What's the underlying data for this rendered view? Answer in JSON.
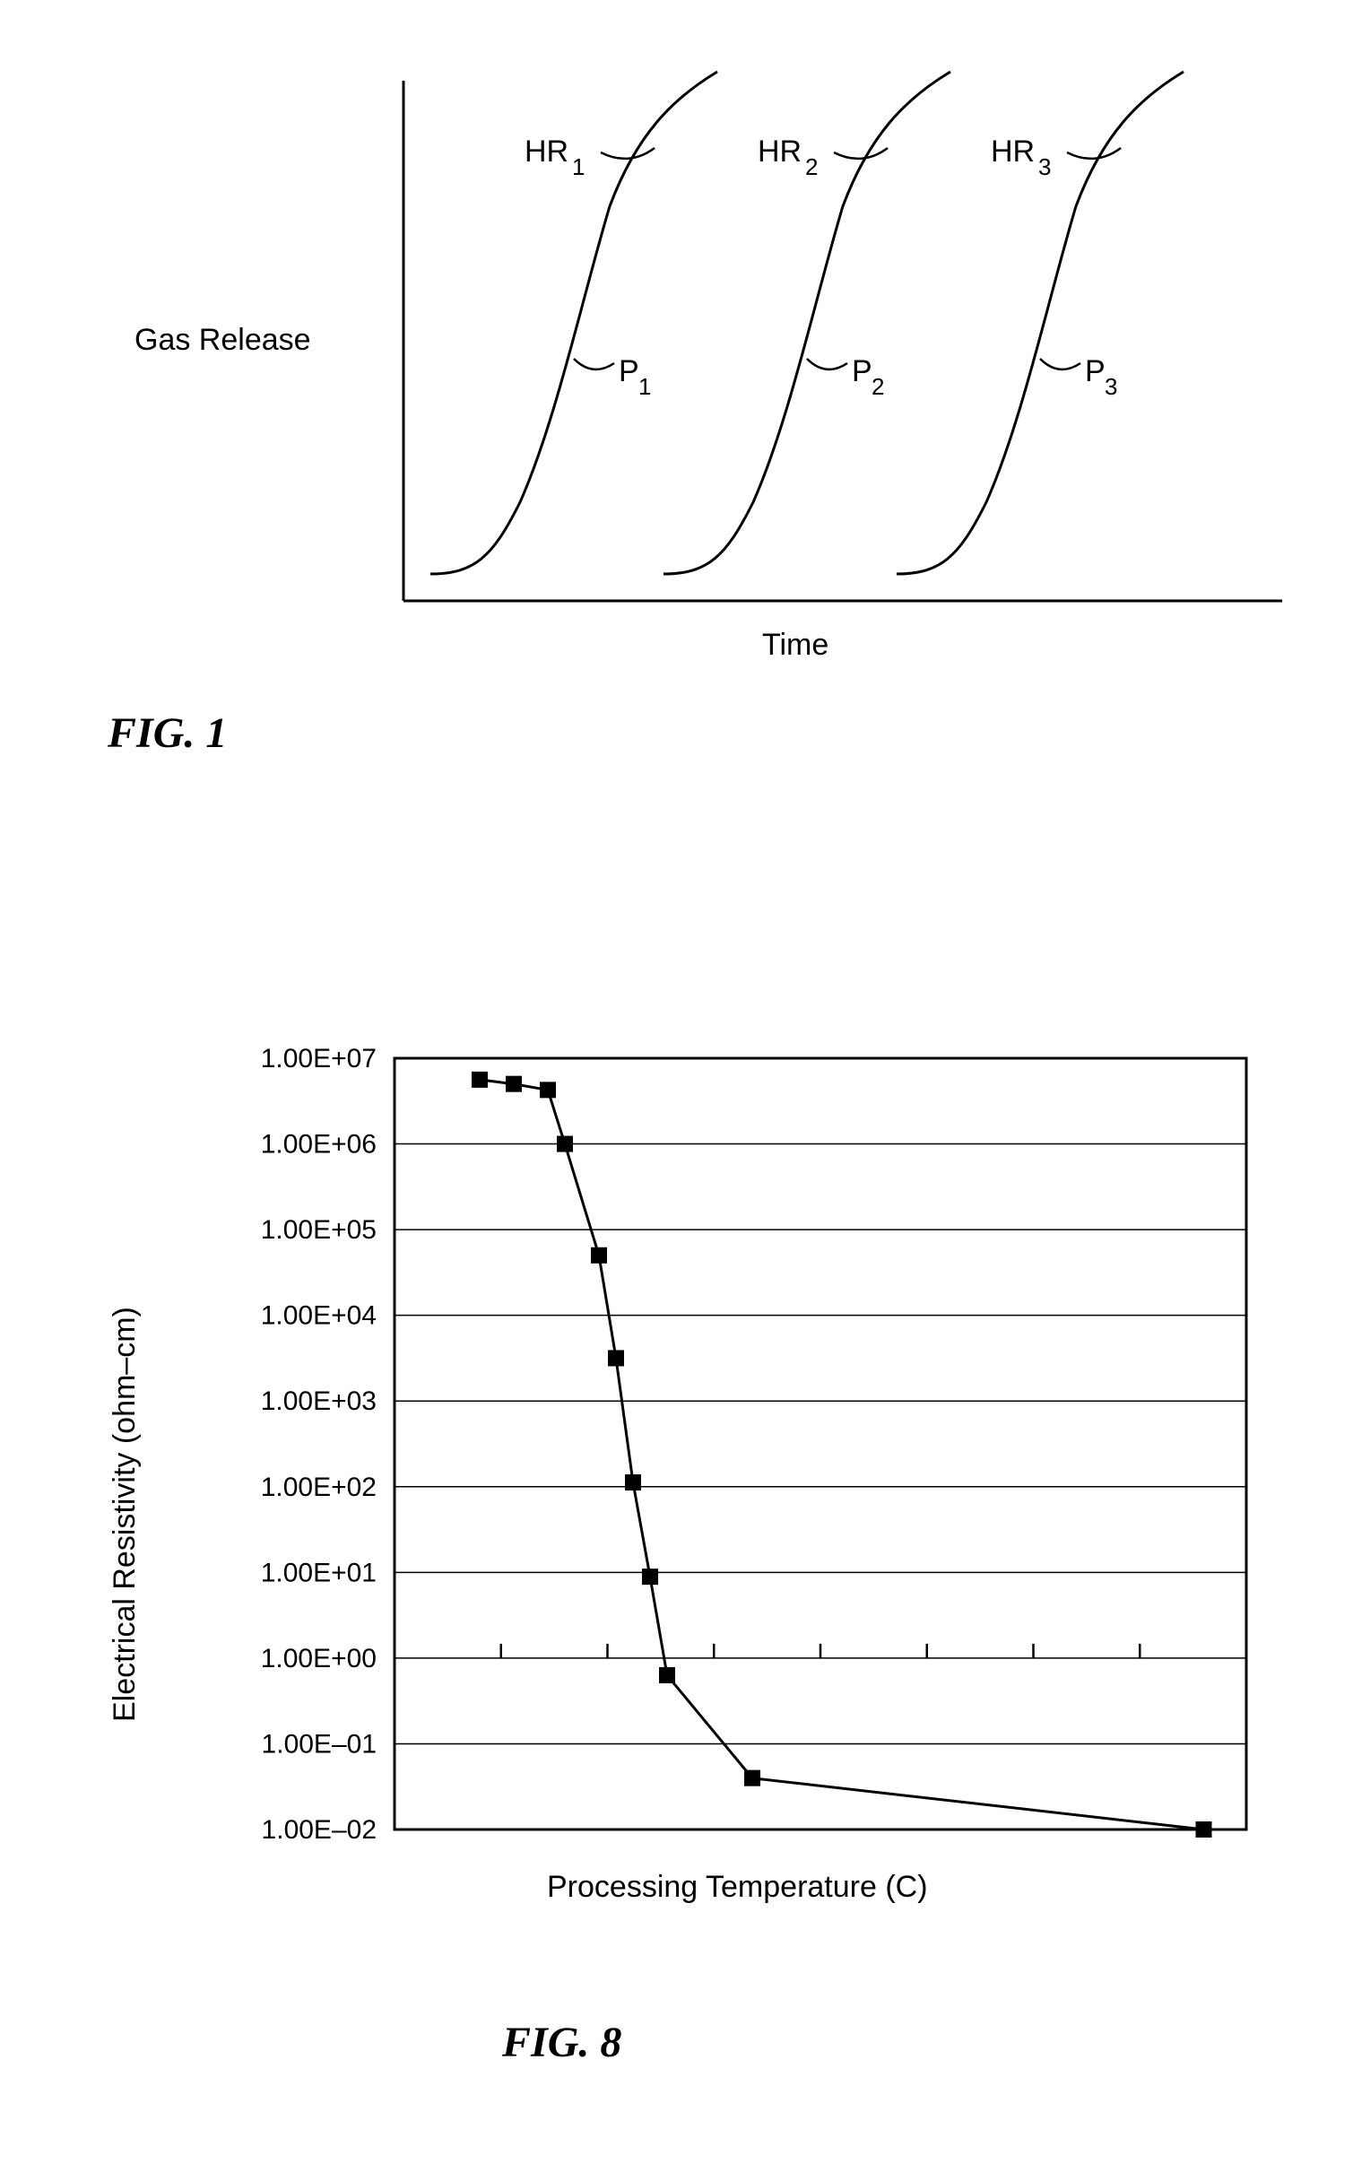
{
  "fig1": {
    "caption": "FIG.  1",
    "caption_fontsize": 48,
    "ylabel": "Gas Release",
    "xlabel": "Time",
    "axis_color": "#000000",
    "axis_width": 3,
    "label_fontsize": 34,
    "curve_color": "#000000",
    "curve_width": 3,
    "curves": [
      {
        "hr_label": "HR",
        "hr_sub": "1",
        "p_label": "P",
        "p_sub": "1",
        "x_offset": 0
      },
      {
        "hr_label": "HR",
        "hr_sub": "2",
        "p_label": "P",
        "p_sub": "2",
        "x_offset": 260
      },
      {
        "hr_label": "HR",
        "hr_sub": "3",
        "p_label": "P",
        "p_sub": "3",
        "x_offset": 520
      }
    ]
  },
  "fig8": {
    "caption": "FIG.  8",
    "caption_fontsize": 48,
    "type": "line",
    "ylabel": "Electrical Resistivity (ohm–cm)",
    "xlabel": "Processing Temperature (C)",
    "label_fontsize": 34,
    "tick_fontsize": 30,
    "axis_color": "#000000",
    "axis_width": 3,
    "grid_color": "#000000",
    "grid_width": 1.5,
    "background_color": "#ffffff",
    "marker_color": "#000000",
    "marker_size": 18,
    "line_color": "#000000",
    "line_width": 3,
    "yscale": "log",
    "ylim_exp": [
      -2,
      7
    ],
    "ytick_labels": [
      "1.00E+07",
      "1.00E+06",
      "1.00E+05",
      "1.00E+04",
      "1.00E+03",
      "1.00E+02",
      "1.00E+01",
      "1.00E+00",
      "1.00E–01",
      "1.00E–02"
    ],
    "xlim": [
      0,
      100
    ],
    "x_ticks": [
      0,
      12.5,
      25,
      37.5,
      50,
      62.5,
      75,
      87.5,
      100
    ],
    "data": [
      {
        "x": 10,
        "y_exp": 6.75
      },
      {
        "x": 14,
        "y_exp": 6.7
      },
      {
        "x": 18,
        "y_exp": 6.63
      },
      {
        "x": 20,
        "y_exp": 6.0
      },
      {
        "x": 24,
        "y_exp": 4.7
      },
      {
        "x": 26,
        "y_exp": 3.5
      },
      {
        "x": 28,
        "y_exp": 2.05
      },
      {
        "x": 30,
        "y_exp": 0.95
      },
      {
        "x": 32,
        "y_exp": -0.2
      },
      {
        "x": 42,
        "y_exp": -1.4
      },
      {
        "x": 95,
        "y_exp": -2.0
      }
    ]
  }
}
